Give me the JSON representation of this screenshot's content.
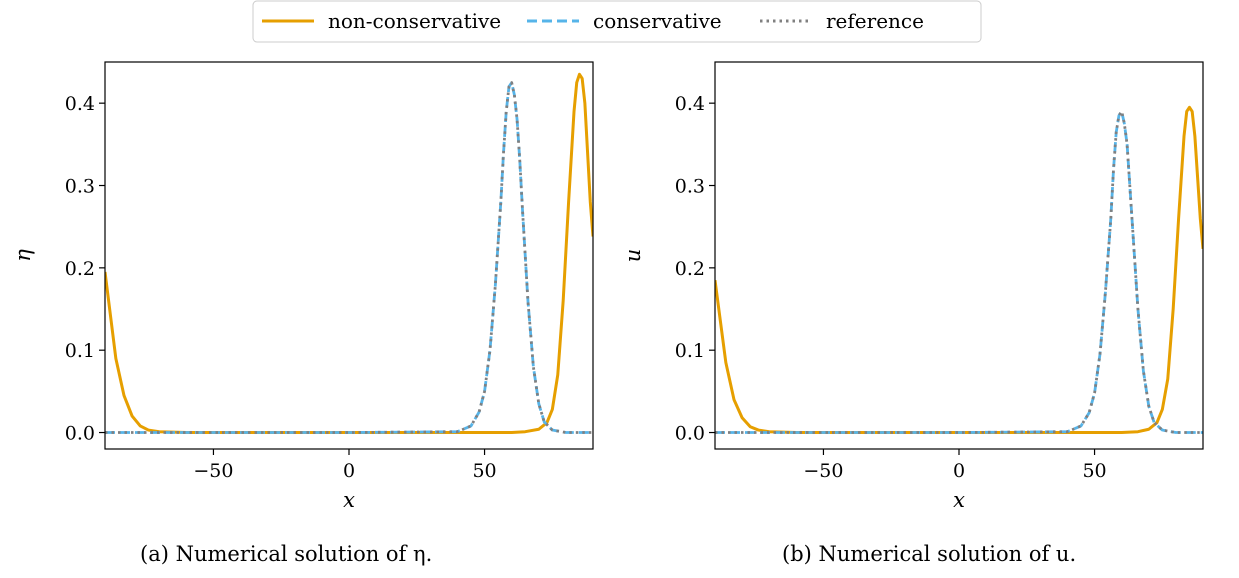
{
  "legend": [
    {
      "label": "non-conservative",
      "color": "#E69F00",
      "style": "solid"
    },
    {
      "label": "conservative",
      "color": "#56B4E9",
      "style": "dashed"
    },
    {
      "label": "reference",
      "color": "#808080",
      "style": "dotted"
    }
  ],
  "captions": {
    "a": "(a) Numerical solution of η.",
    "b": "(b) Numerical solution of u."
  },
  "chart_data": [
    {
      "type": "line",
      "xlabel": "x",
      "ylabel": "η",
      "xlim": [
        -90,
        90
      ],
      "ylim": [
        -0.02,
        0.45
      ],
      "xticks": [
        -50,
        0,
        50
      ],
      "yticks": [
        0.0,
        0.1,
        0.2,
        0.3,
        0.4
      ],
      "grid": false,
      "series": [
        {
          "name": "non-conservative",
          "x": [
            -90,
            -86,
            -83,
            -80,
            -77,
            -74,
            -70,
            -60,
            -40,
            0,
            40,
            60,
            65,
            70,
            73,
            75,
            77,
            79,
            81,
            83,
            84,
            85,
            86,
            87,
            88,
            89,
            90
          ],
          "values": [
            0.195,
            0.09,
            0.045,
            0.02,
            0.008,
            0.003,
            0.001,
            0,
            0,
            0,
            0,
            0,
            0.001,
            0.004,
            0.012,
            0.028,
            0.07,
            0.16,
            0.28,
            0.39,
            0.425,
            0.435,
            0.43,
            0.4,
            0.34,
            0.28,
            0.238
          ]
        },
        {
          "name": "conservative",
          "x": [
            -90,
            -60,
            0,
            40,
            45,
            48,
            50,
            52,
            54,
            56,
            57,
            58,
            59,
            60,
            61,
            62,
            63,
            64,
            66,
            68,
            70,
            72,
            75,
            80,
            90
          ],
          "values": [
            0,
            0,
            0,
            0.001,
            0.008,
            0.025,
            0.05,
            0.1,
            0.18,
            0.28,
            0.34,
            0.39,
            0.42,
            0.425,
            0.41,
            0.38,
            0.33,
            0.27,
            0.16,
            0.08,
            0.035,
            0.013,
            0.003,
            0,
            0
          ]
        },
        {
          "name": "reference",
          "x": [
            -90,
            -60,
            0,
            40,
            45,
            48,
            50,
            52,
            54,
            56,
            57,
            58,
            59,
            60,
            61,
            62,
            63,
            64,
            66,
            68,
            70,
            72,
            75,
            80,
            90
          ],
          "values": [
            0,
            0,
            0,
            0.001,
            0.008,
            0.025,
            0.05,
            0.1,
            0.18,
            0.28,
            0.34,
            0.39,
            0.42,
            0.425,
            0.41,
            0.38,
            0.33,
            0.27,
            0.16,
            0.08,
            0.035,
            0.013,
            0.003,
            0,
            0
          ]
        }
      ]
    },
    {
      "type": "line",
      "xlabel": "x",
      "ylabel": "u",
      "xlim": [
        -90,
        90
      ],
      "ylim": [
        -0.02,
        0.45
      ],
      "xticks": [
        -50,
        0,
        50
      ],
      "yticks": [
        0.0,
        0.1,
        0.2,
        0.3,
        0.4
      ],
      "grid": false,
      "series": [
        {
          "name": "non-conservative",
          "x": [
            -90,
            -86,
            -83,
            -80,
            -77,
            -74,
            -70,
            -60,
            -40,
            0,
            40,
            60,
            66,
            70,
            73,
            75,
            77,
            79,
            81,
            83,
            84,
            85,
            86,
            87,
            88,
            89,
            90
          ],
          "values": [
            0.185,
            0.085,
            0.04,
            0.018,
            0.007,
            0.003,
            0.001,
            0,
            0,
            0,
            0,
            0,
            0.001,
            0.004,
            0.012,
            0.028,
            0.065,
            0.15,
            0.26,
            0.36,
            0.39,
            0.395,
            0.39,
            0.36,
            0.31,
            0.26,
            0.223
          ]
        },
        {
          "name": "conservative",
          "x": [
            -90,
            -60,
            0,
            40,
            45,
            48,
            50,
            52,
            54,
            56,
            57,
            58,
            59,
            60,
            61,
            62,
            63,
            64,
            66,
            68,
            70,
            72,
            75,
            80,
            90
          ],
          "values": [
            0,
            0,
            0,
            0.001,
            0.008,
            0.024,
            0.048,
            0.095,
            0.17,
            0.26,
            0.32,
            0.365,
            0.385,
            0.39,
            0.375,
            0.35,
            0.3,
            0.25,
            0.15,
            0.075,
            0.032,
            0.012,
            0.003,
            0,
            0
          ]
        },
        {
          "name": "reference",
          "x": [
            -90,
            -60,
            0,
            40,
            45,
            48,
            50,
            52,
            54,
            56,
            57,
            58,
            59,
            60,
            61,
            62,
            63,
            64,
            66,
            68,
            70,
            72,
            75,
            80,
            90
          ],
          "values": [
            0,
            0,
            0,
            0.001,
            0.008,
            0.024,
            0.048,
            0.095,
            0.17,
            0.26,
            0.32,
            0.365,
            0.385,
            0.39,
            0.375,
            0.35,
            0.3,
            0.25,
            0.15,
            0.075,
            0.032,
            0.012,
            0.003,
            0,
            0
          ]
        }
      ]
    }
  ]
}
